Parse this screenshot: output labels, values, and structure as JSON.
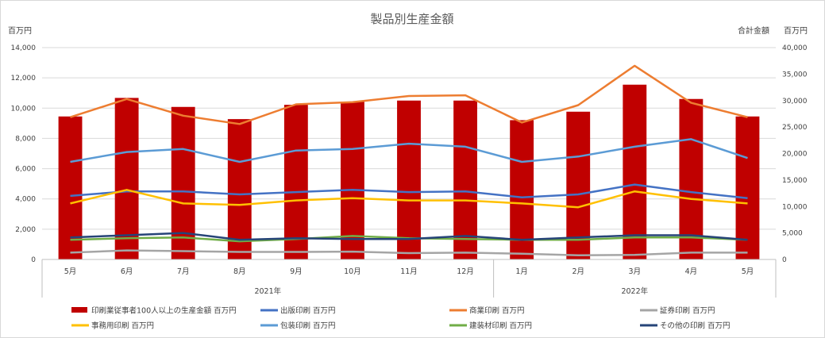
{
  "chart_data": {
    "type": "bar",
    "title": "製品別生産金額",
    "left_axis_unit": "百万円",
    "right_axis_title": "合計金額",
    "right_axis_unit": "百万円",
    "categories": [
      "5月",
      "6月",
      "7月",
      "8月",
      "9月",
      "10月",
      "11月",
      "12月",
      "1月",
      "2月",
      "3月",
      "4月",
      "5月"
    ],
    "year_groups": [
      {
        "label": "2021年",
        "count": 8
      },
      {
        "label": "2022年",
        "count": 5
      }
    ],
    "ylim_left": [
      0,
      14000
    ],
    "yticks_left": [
      "0",
      "2,000",
      "4,000",
      "6,000",
      "8,000",
      "10,000",
      "12,000",
      "14,000"
    ],
    "ylim_right": [
      0,
      40000
    ],
    "yticks_right": [
      "0",
      "5,000",
      "10,000",
      "15,000",
      "20,000",
      "25,000",
      "30,000",
      "35,000",
      "40,000"
    ],
    "grid": true,
    "legend_position": "bottom",
    "series": [
      {
        "name": "印刷業従事者100人以上の生産金額 百万円",
        "type": "bar",
        "axis": "right",
        "color": "#C00000",
        "values": [
          27000,
          30500,
          28800,
          26500,
          29200,
          29800,
          30000,
          30000,
          26300,
          27900,
          33000,
          30300,
          27000
        ]
      },
      {
        "name": "出版印刷 百万円",
        "type": "line",
        "axis": "left",
        "color": "#4472C4",
        "values": [
          4200,
          4500,
          4500,
          4300,
          4450,
          4600,
          4450,
          4500,
          4100,
          4300,
          4950,
          4450,
          4050
        ]
      },
      {
        "name": "商業印刷 百万円",
        "type": "line",
        "axis": "left",
        "color": "#ED7D31",
        "values": [
          9400,
          10600,
          9500,
          8950,
          10250,
          10400,
          10800,
          10850,
          9050,
          10200,
          12800,
          10350,
          9400
        ]
      },
      {
        "name": "証券印刷 百万円",
        "type": "line",
        "axis": "left",
        "color": "#A5A5A5",
        "values": [
          450,
          600,
          550,
          500,
          500,
          520,
          420,
          450,
          380,
          280,
          300,
          450,
          450
        ]
      },
      {
        "name": "事務用印刷 百万円",
        "type": "line",
        "axis": "left",
        "color": "#FFC000",
        "values": [
          3700,
          4600,
          3700,
          3600,
          3900,
          4050,
          3900,
          3900,
          3700,
          3450,
          4500,
          4000,
          3700
        ]
      },
      {
        "name": "包装印刷 百万円",
        "type": "line",
        "axis": "left",
        "color": "#5B9BD5",
        "values": [
          6450,
          7100,
          7300,
          6450,
          7200,
          7300,
          7650,
          7450,
          6450,
          6800,
          7450,
          7950,
          6700
        ]
      },
      {
        "name": "建装材印刷 百万円",
        "type": "line",
        "axis": "left",
        "color": "#70AD47",
        "values": [
          1300,
          1400,
          1450,
          1200,
          1350,
          1550,
          1400,
          1350,
          1300,
          1300,
          1450,
          1450,
          1300
        ]
      },
      {
        "name": "その他の印刷 百万円",
        "type": "line",
        "axis": "left",
        "color": "#264478",
        "values": [
          1450,
          1600,
          1750,
          1300,
          1400,
          1350,
          1350,
          1550,
          1300,
          1450,
          1600,
          1600,
          1300
        ]
      }
    ]
  }
}
